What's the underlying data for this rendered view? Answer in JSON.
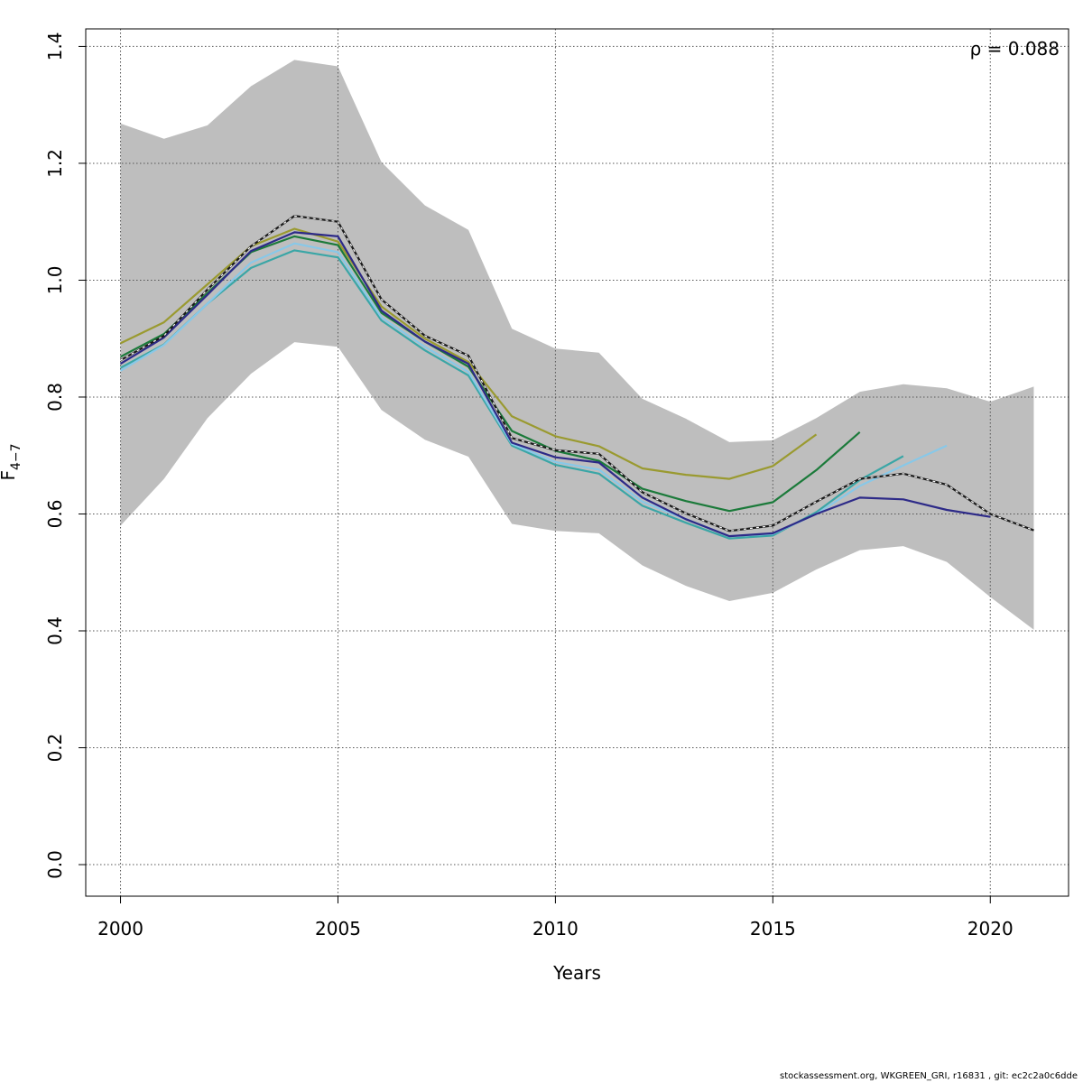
{
  "chart_data": {
    "type": "line",
    "title": "",
    "xlabel": "Years",
    "ylabel_main": "F",
    "ylabel_sub": "4−7",
    "xlim": [
      1999.2,
      2021.8
    ],
    "ylim": [
      -0.054,
      1.43
    ],
    "xticks": [
      2000,
      2005,
      2010,
      2015,
      2020
    ],
    "yticks": [
      0.0,
      0.2,
      0.4,
      0.6,
      0.8,
      1.0,
      1.2,
      1.4
    ],
    "ytick_labels": [
      "0.0",
      "0.2",
      "0.4",
      "0.6",
      "0.8",
      "1.0",
      "1.2",
      "1.4"
    ],
    "grid": true,
    "annotation": "ρ = 0.088",
    "band": {
      "x": [
        2000,
        2001,
        2002,
        2003,
        2004,
        2005,
        2006,
        2007,
        2008,
        2009,
        2010,
        2011,
        2012,
        2013,
        2014,
        2015,
        2016,
        2017,
        2018,
        2019,
        2020,
        2021
      ],
      "upper": [
        1.268,
        1.242,
        1.265,
        1.332,
        1.377,
        1.366,
        1.202,
        1.128,
        1.086,
        0.917,
        0.883,
        0.876,
        0.797,
        0.763,
        0.723,
        0.726,
        0.764,
        0.809,
        0.822,
        0.815,
        0.792,
        0.818
      ],
      "lower": [
        0.58,
        0.66,
        0.764,
        0.84,
        0.894,
        0.886,
        0.778,
        0.727,
        0.698,
        0.583,
        0.571,
        0.567,
        0.512,
        0.477,
        0.451,
        0.465,
        0.505,
        0.538,
        0.545,
        0.518,
        0.458,
        0.402
      ],
      "color": "#bebebe"
    },
    "series": [
      {
        "x": [
          2000,
          2001,
          2002,
          2003,
          2004,
          2005,
          2006,
          2007,
          2008,
          2009,
          2010,
          2011,
          2012,
          2013,
          2014,
          2015,
          2016
        ],
        "values": [
          0.892,
          0.928,
          0.993,
          1.058,
          1.088,
          1.066,
          0.955,
          0.9,
          0.86,
          0.767,
          0.733,
          0.716,
          0.678,
          0.667,
          0.66,
          0.682,
          0.736
        ],
        "color": "#9a9a30"
      },
      {
        "x": [
          2000,
          2001,
          2002,
          2003,
          2004,
          2005,
          2006,
          2007,
          2008,
          2009,
          2010,
          2011,
          2012,
          2013,
          2014,
          2015,
          2016,
          2017
        ],
        "values": [
          0.869,
          0.908,
          0.978,
          1.048,
          1.075,
          1.06,
          0.944,
          0.895,
          0.852,
          0.742,
          0.708,
          0.691,
          0.643,
          0.622,
          0.605,
          0.62,
          0.675,
          0.74
        ],
        "color": "#1b7a3a"
      },
      {
        "x": [
          2000,
          2001,
          2002,
          2003,
          2004,
          2005,
          2006,
          2007,
          2008,
          2009,
          2010,
          2011,
          2012,
          2013,
          2014,
          2015,
          2016,
          2017,
          2018
        ],
        "values": [
          0.85,
          0.89,
          0.96,
          1.021,
          1.051,
          1.039,
          0.931,
          0.88,
          0.837,
          0.717,
          0.684,
          0.669,
          0.614,
          0.585,
          0.558,
          0.563,
          0.603,
          0.658,
          0.699
        ],
        "color": "#3aa6a6"
      },
      {
        "x": [
          2000,
          2001,
          2002,
          2003,
          2004,
          2005,
          2006,
          2007,
          2008,
          2009,
          2010,
          2011,
          2012,
          2013,
          2014,
          2015,
          2016,
          2017,
          2018,
          2019
        ],
        "values": [
          0.845,
          0.889,
          0.96,
          1.03,
          1.063,
          1.048,
          0.936,
          0.886,
          0.843,
          0.72,
          0.689,
          0.676,
          0.621,
          0.591,
          0.562,
          0.566,
          0.6,
          0.648,
          0.683,
          0.717
        ],
        "color": "#88c8e8"
      },
      {
        "x": [
          2000,
          2001,
          2002,
          2003,
          2004,
          2005,
          2006,
          2007,
          2008,
          2009,
          2010,
          2011,
          2012,
          2013,
          2014,
          2015,
          2016,
          2017,
          2018,
          2019,
          2020
        ],
        "values": [
          0.857,
          0.902,
          0.975,
          1.05,
          1.082,
          1.075,
          0.948,
          0.895,
          0.857,
          0.722,
          0.697,
          0.688,
          0.628,
          0.591,
          0.562,
          0.567,
          0.6,
          0.628,
          0.625,
          0.607,
          0.595
        ],
        "color": "#2d2a88"
      },
      {
        "x": [
          2000,
          2001,
          2002,
          2003,
          2004,
          2005,
          2006,
          2007,
          2008,
          2009,
          2010,
          2011,
          2012,
          2013,
          2014,
          2015,
          2016,
          2017,
          2018,
          2019,
          2020,
          2021
        ],
        "values": [
          0.863,
          0.905,
          0.984,
          1.058,
          1.11,
          1.1,
          0.967,
          0.905,
          0.871,
          0.73,
          0.709,
          0.703,
          0.637,
          0.601,
          0.571,
          0.58,
          0.621,
          0.66,
          0.669,
          0.65,
          0.6,
          0.572
        ],
        "color": "#1a1a1a",
        "dashed_overlay": true
      }
    ]
  },
  "footer_text": "stockassessment.org, WKGREEN_GRI, r16831 , git: ec2c2a0c6dde"
}
